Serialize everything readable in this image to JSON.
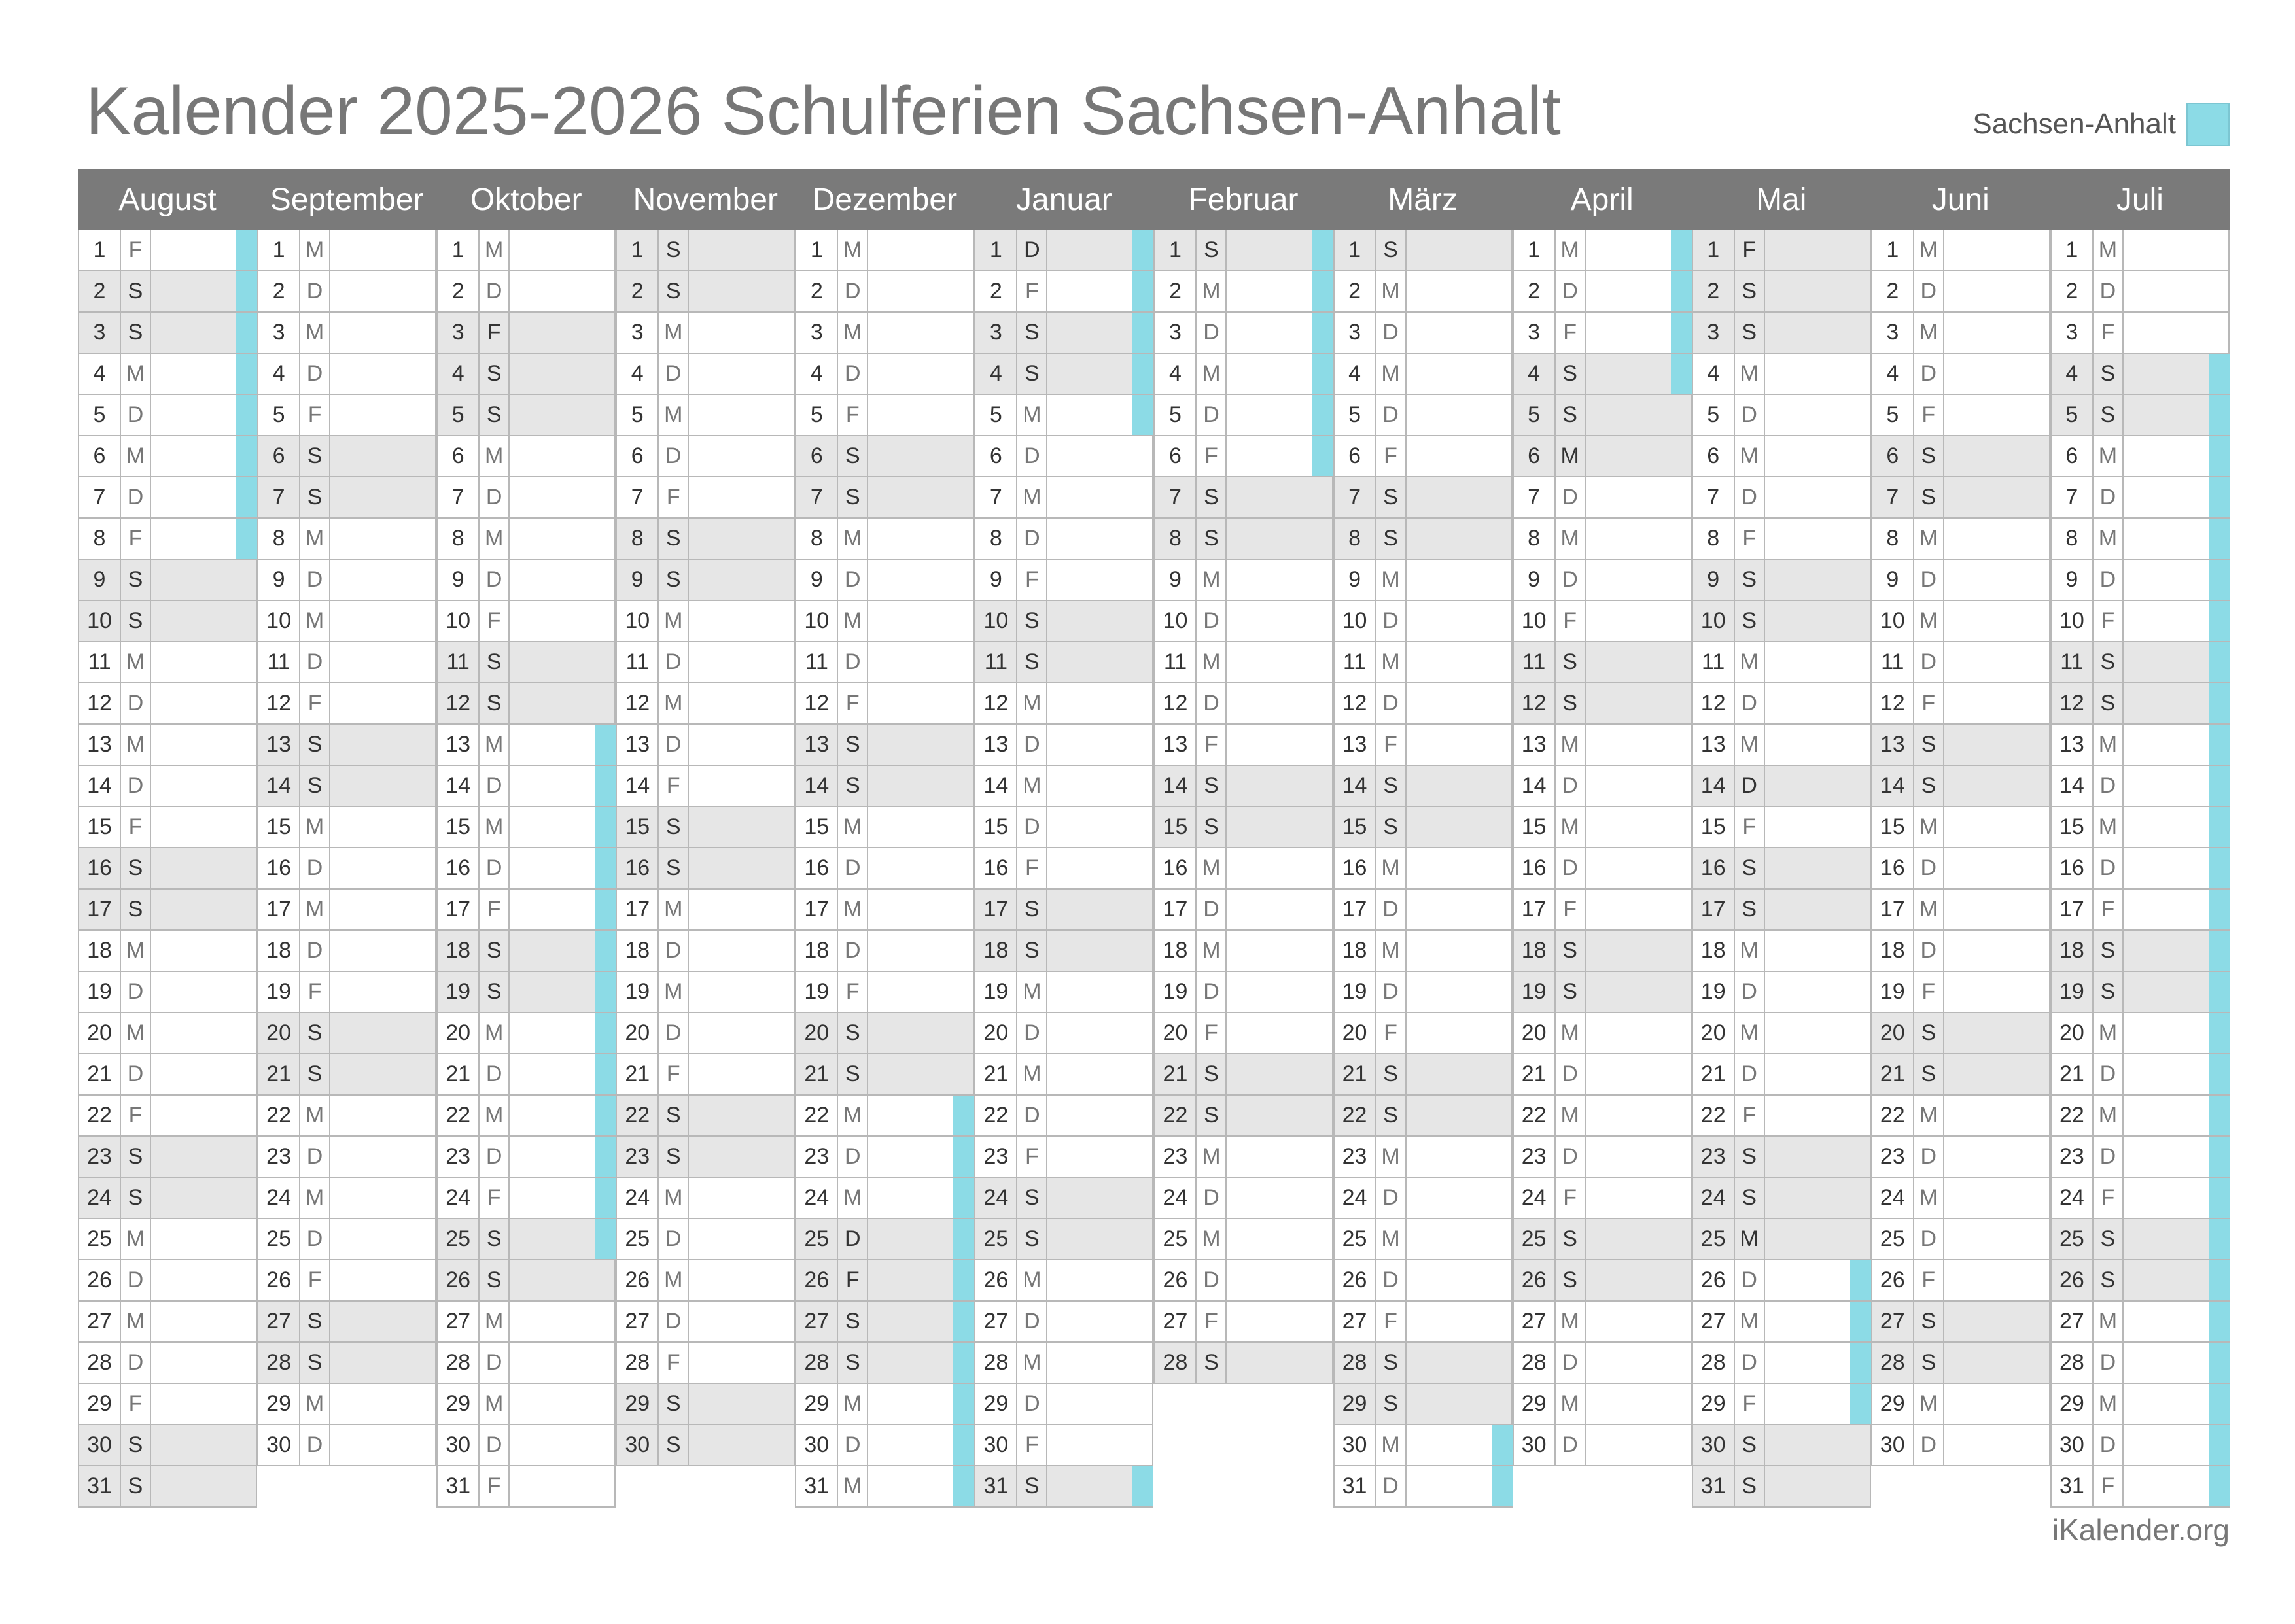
{
  "title": "Kalender 2025-2026 Schulferien Sachsen-Anhalt",
  "legend": {
    "label": "Sachsen-Anhalt",
    "color": "#8cdbe6"
  },
  "colors": {
    "header": "#7a7a7a",
    "weekend": "#e6e6e6",
    "holiday": "#8cdbe6",
    "grid": "#b8b8b8"
  },
  "footer": "iKalender.org",
  "months": [
    {
      "name": "August",
      "days": 31,
      "startWeekday": 4,
      "holidays": [
        1,
        2,
        3,
        4,
        5,
        6,
        7,
        8
      ]
    },
    {
      "name": "September",
      "days": 30,
      "startWeekday": 0,
      "holidays": []
    },
    {
      "name": "Oktober",
      "days": 31,
      "startWeekday": 2,
      "holidays": [
        13,
        14,
        15,
        16,
        17,
        18,
        19,
        20,
        21,
        22,
        23,
        24,
        25
      ]
    },
    {
      "name": "November",
      "days": 30,
      "startWeekday": 5,
      "holidays": []
    },
    {
      "name": "Dezember",
      "days": 31,
      "startWeekday": 0,
      "holidays": [
        22,
        23,
        24,
        25,
        26,
        27,
        28,
        29,
        30,
        31
      ]
    },
    {
      "name": "Januar",
      "days": 31,
      "startWeekday": 3,
      "holidays": [
        1,
        2,
        3,
        4,
        5,
        31
      ]
    },
    {
      "name": "Februar",
      "days": 28,
      "startWeekday": 6,
      "holidays": [
        1,
        2,
        3,
        4,
        5,
        6
      ]
    },
    {
      "name": "März",
      "days": 31,
      "startWeekday": 6,
      "holidays": [
        30,
        31
      ]
    },
    {
      "name": "April",
      "days": 30,
      "startWeekday": 2,
      "holidays": [
        1,
        2,
        3,
        4
      ]
    },
    {
      "name": "Mai",
      "days": 31,
      "startWeekday": 4,
      "holidays": [
        26,
        27,
        28,
        29
      ]
    },
    {
      "name": "Juni",
      "days": 30,
      "startWeekday": 0,
      "holidays": []
    },
    {
      "name": "Juli",
      "days": 31,
      "startWeekday": 2,
      "holidays": [
        4,
        5,
        6,
        7,
        8,
        9,
        10,
        11,
        12,
        13,
        14,
        15,
        16,
        17,
        18,
        19,
        20,
        21,
        22,
        23,
        24,
        25,
        26,
        27,
        28,
        29,
        30,
        31
      ]
    }
  ],
  "specialDays": {
    "Januar": [
      1
    ],
    "Mai": [
      1,
      14,
      25
    ],
    "Dezember": [
      25,
      26
    ],
    "April": [
      6
    ],
    "Oktober": [
      3
    ]
  },
  "weekdayLetters": [
    "M",
    "D",
    "M",
    "D",
    "F",
    "S",
    "S"
  ]
}
